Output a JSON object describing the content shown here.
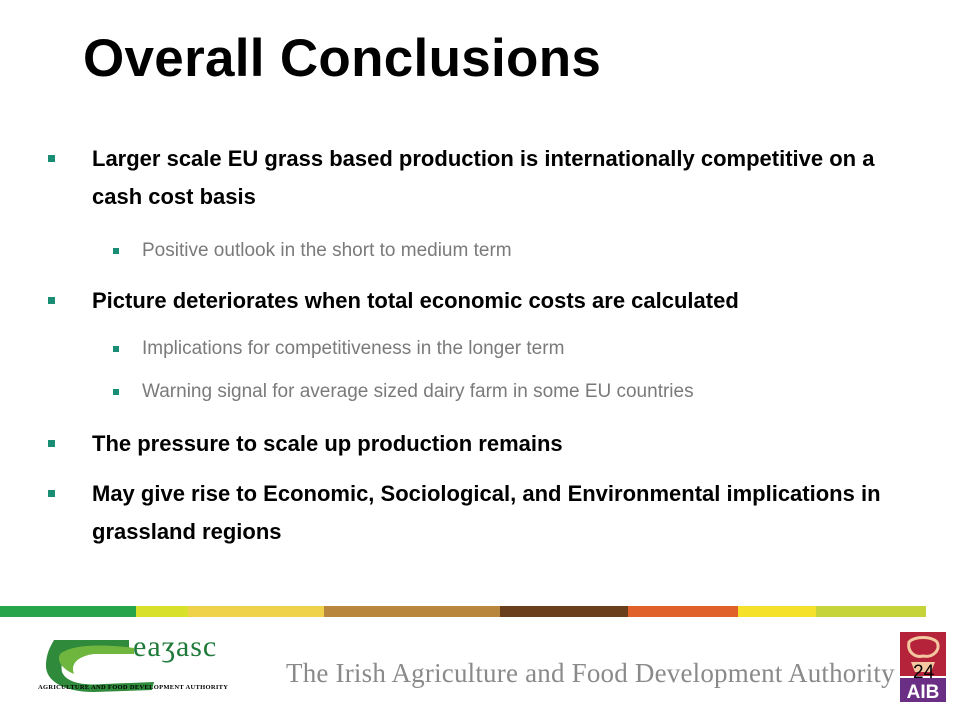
{
  "slide": {
    "title": "Overall Conclusions",
    "page_number": "24"
  },
  "bullets": [
    {
      "level": 1,
      "text": "Larger scale EU grass based production is internationally competitive on a cash cost basis"
    },
    {
      "level": 2,
      "text": "Positive outlook in the short to medium term"
    },
    {
      "level": 1,
      "text": "Picture deteriorates when total economic costs are calculated"
    },
    {
      "level": 2,
      "text": "Implications for competitiveness in the longer term"
    },
    {
      "level": 2,
      "text": "Warning signal for average sized dairy farm in some EU countries"
    },
    {
      "level": 1,
      "text": "The pressure to scale up production remains"
    },
    {
      "level": 1,
      "text": "May give rise to Economic, Sociological, and Environmental implications in grassland regions"
    }
  ],
  "footer": {
    "logo_word": "eaʒasc",
    "logo_subtitle": "AGRICULTURE AND FOOD DEVELOPMENT AUTHORITY",
    "tagline": "The Irish Agriculture and Food Development Authority",
    "bank_logo_text": "AIB"
  },
  "colors": {
    "bullet_mark": "#1a8e74",
    "stripe": [
      "#27a54a",
      "#d8e02a",
      "#f0d24a",
      "#b8873d",
      "#6a3f1c",
      "#e0612a",
      "#f5e02a",
      "#c6d43a"
    ]
  }
}
